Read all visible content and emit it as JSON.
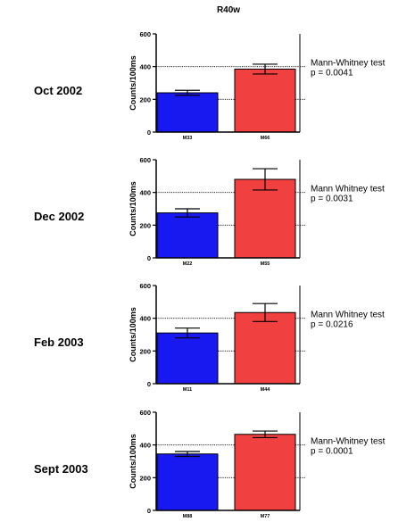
{
  "title": "R40w",
  "colors": {
    "bar1": "#1818f0",
    "bar2": "#f04040",
    "axis": "#000000"
  },
  "chart_data": [
    {
      "type": "bar",
      "row_label": "Oct 2002",
      "ylabel": "Counts/100ms",
      "ylim": [
        0,
        600
      ],
      "yticks": [
        "0",
        "200",
        "400",
        "600"
      ],
      "categories": [
        "M33",
        "M66"
      ],
      "values": [
        240,
        385
      ],
      "errors": [
        15,
        30
      ],
      "reference_lines": [
        400,
        200
      ],
      "annotation": [
        "Mann-Whitney test",
        "p = 0.0041"
      ]
    },
    {
      "type": "bar",
      "row_label": "Dec 2002",
      "ylabel": "Counts/100ms",
      "ylim": [
        0,
        600
      ],
      "yticks": [
        "0",
        "200",
        "400",
        "600"
      ],
      "categories": [
        "M22",
        "M55"
      ],
      "values": [
        275,
        480
      ],
      "errors": [
        25,
        65
      ],
      "reference_lines": [
        400,
        200
      ],
      "annotation": [
        "Mann Whitney test",
        "p = 0.0031"
      ]
    },
    {
      "type": "bar",
      "row_label": "Feb 2003",
      "ylabel": "Counts/100ms",
      "ylim": [
        0,
        600
      ],
      "yticks": [
        "0",
        "200",
        "400",
        "600"
      ],
      "categories": [
        "M11",
        "M44"
      ],
      "values": [
        310,
        435
      ],
      "errors": [
        30,
        55
      ],
      "reference_lines": [
        400,
        200
      ],
      "annotation": [
        "Mann Whitney test",
        "p = 0.0216"
      ]
    },
    {
      "type": "bar",
      "row_label": "Sept 2003",
      "ylabel": "Counts/100ms",
      "ylim": [
        0,
        600
      ],
      "yticks": [
        "0",
        "200",
        "400",
        "600"
      ],
      "categories": [
        "M88",
        "M77"
      ],
      "values": [
        345,
        465
      ],
      "errors": [
        15,
        20
      ],
      "reference_lines": [
        400,
        200
      ],
      "annotation": [
        "Mann-Whitney test",
        "p = 0.0001"
      ]
    }
  ]
}
